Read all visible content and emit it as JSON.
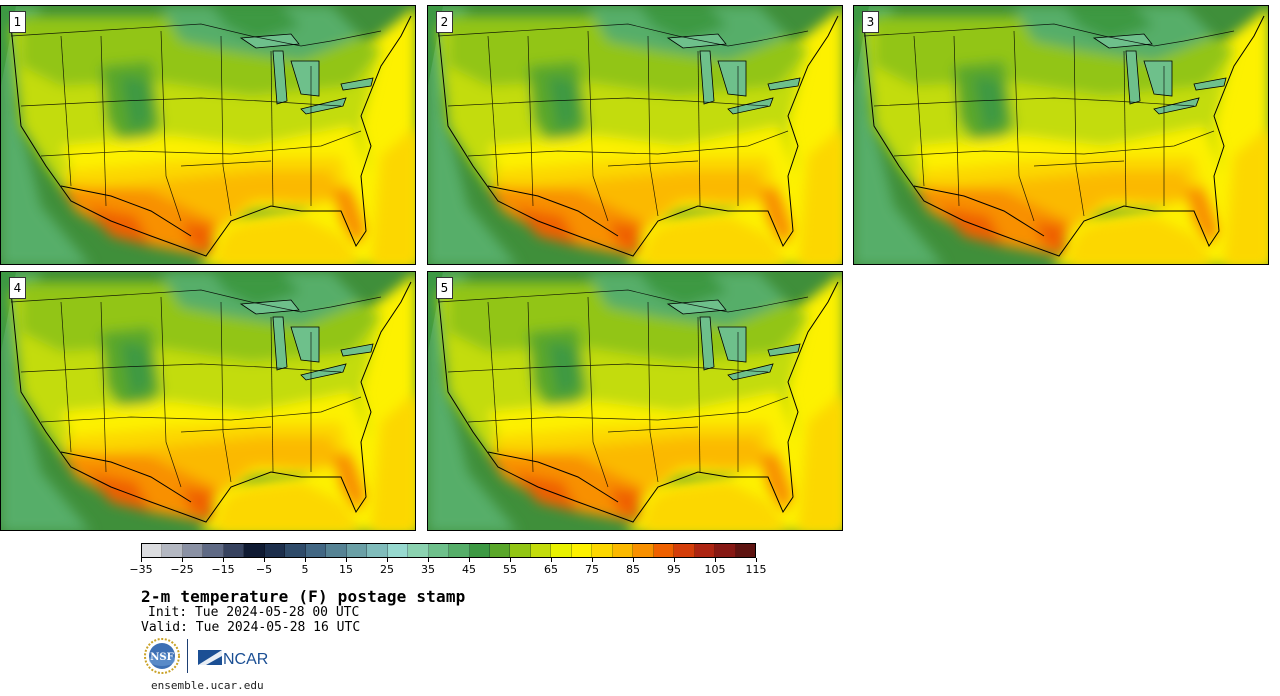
{
  "panels": [
    {
      "label": "1"
    },
    {
      "label": "2"
    },
    {
      "label": "3"
    },
    {
      "label": "4"
    },
    {
      "label": "5"
    }
  ],
  "colorbar": {
    "colors": [
      "#dcdde0",
      "#b4b8c2",
      "#8a91a4",
      "#5f6a85",
      "#37435f",
      "#101b33",
      "#1d2f4c",
      "#2f4b69",
      "#426783",
      "#568394",
      "#6ba0a6",
      "#80bcbb",
      "#97d9cf",
      "#8bd2b0",
      "#6ec08b",
      "#56ae69",
      "#3d9943",
      "#5aa72a",
      "#92c514",
      "#c3dc0b",
      "#e8f100",
      "#fdf100",
      "#fcd700",
      "#fbb900",
      "#f89000",
      "#ef6100",
      "#d43e0a",
      "#ad2512",
      "#861914",
      "#5e1411"
    ],
    "tick_labels": [
      "−35",
      "−25",
      "−15",
      "−5",
      "5",
      "15",
      "25",
      "35",
      "45",
      "55",
      "65",
      "75",
      "85",
      "95",
      "105",
      "115"
    ]
  },
  "title": "2-m temperature (F) postage stamp",
  "init": "Init: Tue 2024-05-28 00 UTC",
  "valid": "Valid: Tue 2024-05-28 16 UTC",
  "logos": {
    "nsf_text": "NSF",
    "ncar_text": "NCAR"
  },
  "site": "ensemble.ucar.edu"
}
